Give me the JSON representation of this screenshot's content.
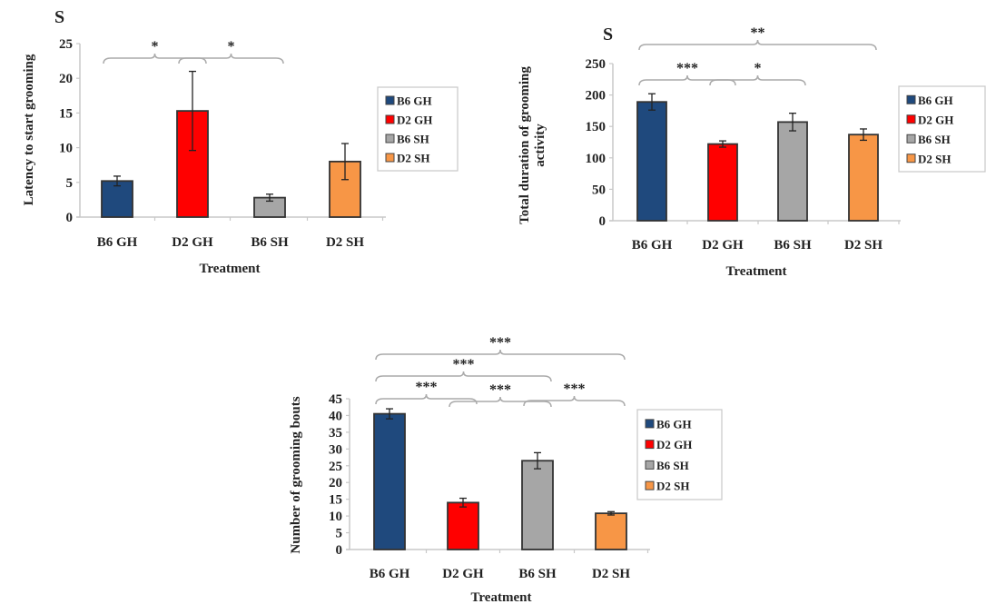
{
  "colors": {
    "B6 GH": "#1f497d",
    "D2 GH": "#ff0000",
    "B6 SH": "#a6a6a6",
    "D2 SH": "#f79646"
  },
  "chart_data": [
    {
      "type": "bar",
      "panel_label": "S",
      "title": "",
      "xlabel": "Treatment",
      "ylabel": "Latency to start grooming",
      "categories": [
        "B6 GH",
        "D2 GH",
        "B6 SH",
        "D2 SH"
      ],
      "values": [
        5.2,
        15.3,
        2.8,
        8.0
      ],
      "errors": [
        0.7,
        5.7,
        0.5,
        2.6
      ],
      "ylim": [
        0,
        25
      ],
      "yticks": [
        "0",
        "5",
        "10",
        "15",
        "20",
        "25"
      ],
      "legend": [
        "B6 GH",
        "D2 GH",
        "B6 SH",
        "D2 SH"
      ],
      "legend_position": "right",
      "significance": [
        {
          "from": 0,
          "to": 1,
          "label": "*"
        },
        {
          "from": 1,
          "to": 2,
          "label": "*"
        }
      ]
    },
    {
      "type": "bar",
      "panel_label": "S",
      "title": "",
      "xlabel": "Treatment",
      "ylabel": "Total duration of grooming activity",
      "categories": [
        "B6 GH",
        "D2 GH",
        "B6 SH",
        "D2 SH"
      ],
      "values": [
        189,
        122,
        157,
        137
      ],
      "errors": [
        13,
        5,
        14,
        9
      ],
      "ylim": [
        0,
        250
      ],
      "yticks": [
        "0",
        "50",
        "100",
        "150",
        "200",
        "250"
      ],
      "legend": [
        "B6 GH",
        "D2 GH",
        "B6 SH",
        "D2 SH"
      ],
      "legend_position": "right",
      "significance": [
        {
          "from": 0,
          "to": 1,
          "label": "***"
        },
        {
          "from": 1,
          "to": 2,
          "label": "*"
        },
        {
          "from": 0,
          "to": 3,
          "label": "**"
        }
      ]
    },
    {
      "type": "bar",
      "panel_label": "",
      "title": "",
      "xlabel": "Treatment",
      "ylabel": "Number of grooming bouts",
      "categories": [
        "B6 GH",
        "D2 GH",
        "B6 SH",
        "D2 SH"
      ],
      "values": [
        40.5,
        14.0,
        26.5,
        10.8
      ],
      "errors": [
        1.5,
        1.3,
        2.4,
        0.5
      ],
      "ylim": [
        0,
        45
      ],
      "yticks": [
        "0",
        "5",
        "10",
        "15",
        "20",
        "25",
        "30",
        "35",
        "40",
        "45"
      ],
      "legend": [
        "B6 GH",
        "D2 GH",
        "B6 SH",
        "D2 SH"
      ],
      "legend_position": "right",
      "significance": [
        {
          "from": 0,
          "to": 1,
          "label": "***"
        },
        {
          "from": 1,
          "to": 2,
          "label": "***"
        },
        {
          "from": 2,
          "to": 3,
          "label": "***"
        },
        {
          "from": 0,
          "to": 2,
          "label": "***"
        },
        {
          "from": 0,
          "to": 3,
          "label": "***"
        }
      ]
    }
  ]
}
